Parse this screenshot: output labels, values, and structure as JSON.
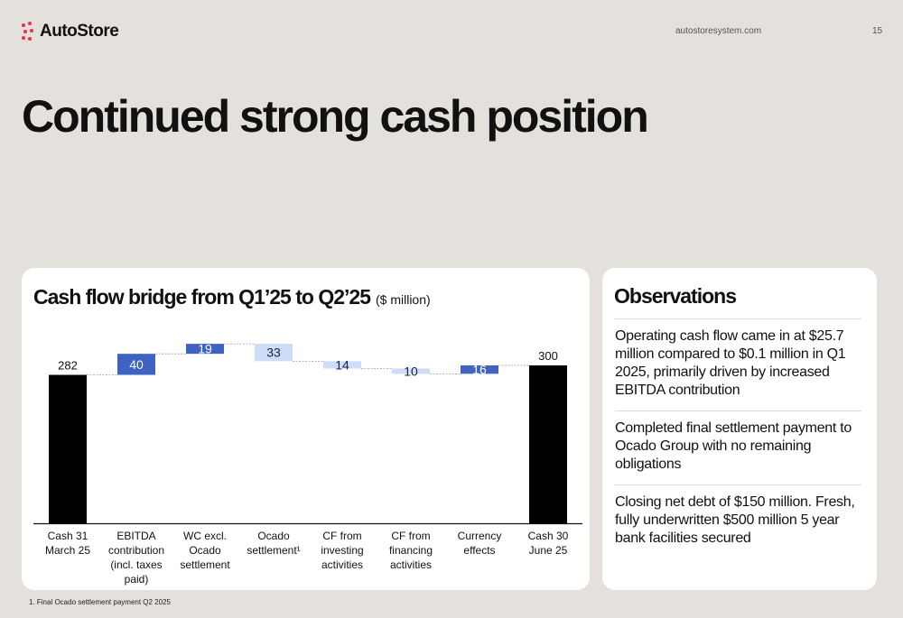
{
  "header": {
    "logo_text": "AutoStore",
    "url": "autostoresystem.com",
    "page_number": "15"
  },
  "title": "Continued strong cash position",
  "chart_card": {
    "title": "Cash flow bridge from Q1’25 to Q2’25",
    "unit": "($ million)"
  },
  "chart_data": {
    "type": "bar",
    "subtype": "waterfall",
    "title": "Cash flow bridge from Q1’25 to Q2’25",
    "unit": "($ million)",
    "categories": [
      [
        "Cash 31",
        "March 25"
      ],
      [
        "EBITDA",
        "contribution",
        "(incl. taxes",
        "paid)"
      ],
      [
        "WC excl.",
        "Ocado",
        "settlement"
      ],
      [
        "Ocado",
        "settlement¹"
      ],
      [
        "CF from",
        "investing",
        "activities"
      ],
      [
        "CF from",
        "financing",
        "activities"
      ],
      [
        "Currency",
        "effects"
      ],
      [
        "Cash 30",
        "June 25"
      ]
    ],
    "steps": [
      {
        "kind": "total",
        "value": 282,
        "label": "282"
      },
      {
        "kind": "increase",
        "value": 40,
        "label": "40"
      },
      {
        "kind": "increase",
        "value": 19,
        "label": "19"
      },
      {
        "kind": "decrease",
        "value": -33,
        "label": "33"
      },
      {
        "kind": "decrease",
        "value": -14,
        "label": "14"
      },
      {
        "kind": "decrease",
        "value": -10,
        "label": "10"
      },
      {
        "kind": "increase",
        "value": 16,
        "label": "16"
      },
      {
        "kind": "total",
        "value": 300,
        "label": "300"
      }
    ],
    "colors": {
      "total": "#000000",
      "increase": "#3e63c0",
      "decrease": "#cddcf7",
      "increase_text": "#ffffff",
      "decrease_text": "#1b2340"
    },
    "ylim": [
      0,
      345
    ],
    "grid": false,
    "legend": "none"
  },
  "observations": {
    "title": "Observations",
    "items": [
      "Operating cash flow came in at $25.7 million compared to $0.1 million in Q1 2025, primarily driven by increased EBITDA contribution",
      "Completed final settlement payment to Ocado Group with no remaining obligations",
      "Closing net debt of $150 million. Fresh, fully underwritten $500 million 5 year bank facilities secured"
    ]
  },
  "footnote": "1. Final Ocado settlement payment Q2 2025"
}
